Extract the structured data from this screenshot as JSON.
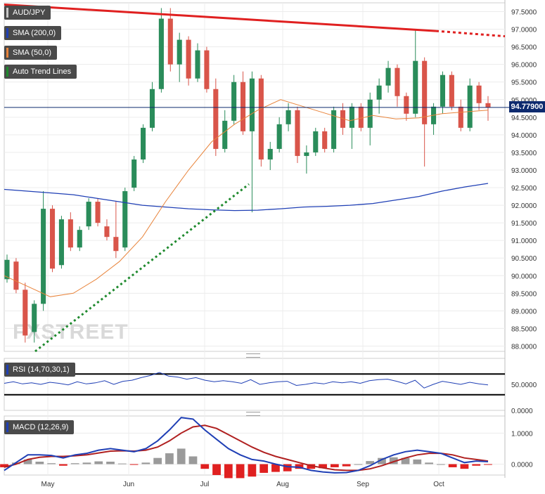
{
  "chart_data": [
    {
      "type": "candlestick",
      "panel": "price",
      "symbol": "AUD/JPY",
      "ylim": [
        87.85,
        97.75
      ],
      "y_ticks": [
        "97.5000",
        "97.0000",
        "96.5000",
        "96.0000",
        "95.5000",
        "95.0000",
        "94.5000",
        "94.0000",
        "93.5000",
        "93.0000",
        "92.5000",
        "92.0000",
        "91.5000",
        "91.0000",
        "90.5000",
        "90.0000",
        "89.5000",
        "89.0000",
        "88.5000",
        "88.0000"
      ],
      "x_labels": [
        "May",
        "Jun",
        "Jul",
        "Aug",
        "Sep",
        "Oct"
      ],
      "last_price": "94.77900",
      "legend": [
        "AUD/JPY",
        "SMA (200,0)",
        "SMA (50,0)",
        "Auto Trend Lines"
      ],
      "sma200": [
        92.45,
        92.4,
        92.35,
        92.3,
        92.2,
        92.1,
        92.0,
        91.95,
        91.9,
        91.87,
        91.85,
        91.86,
        91.9,
        91.95,
        91.97,
        92.0,
        92.05,
        92.15,
        92.25,
        92.4,
        92.52,
        92.62
      ],
      "sma50": [
        90.0,
        89.7,
        89.4,
        89.5,
        89.9,
        90.4,
        91.1,
        92.1,
        93.0,
        93.8,
        94.3,
        94.7,
        95.0,
        94.8,
        94.6,
        94.4,
        94.55,
        94.45,
        94.48,
        94.6,
        94.65,
        94.7
      ],
      "resistance_line": {
        "start": 97.7,
        "end": 96.95,
        "extension_end": 96.8
      },
      "support_line": {
        "start": 87.85,
        "end": 92.6
      },
      "candles": [
        {
          "o": 89.9,
          "h": 90.6,
          "l": 89.8,
          "c": 90.45
        },
        {
          "o": 90.4,
          "h": 90.5,
          "l": 89.5,
          "c": 89.6
        },
        {
          "o": 89.6,
          "h": 89.8,
          "l": 88.1,
          "c": 88.3
        },
        {
          "o": 88.4,
          "h": 89.3,
          "l": 88.1,
          "c": 89.2
        },
        {
          "o": 89.2,
          "h": 92.4,
          "l": 89.0,
          "c": 91.9
        },
        {
          "o": 91.9,
          "h": 92.0,
          "l": 90.1,
          "c": 90.2
        },
        {
          "o": 90.3,
          "h": 91.7,
          "l": 90.2,
          "c": 91.6
        },
        {
          "o": 91.6,
          "h": 91.8,
          "l": 90.7,
          "c": 90.8
        },
        {
          "o": 90.8,
          "h": 91.4,
          "l": 90.7,
          "c": 91.3
        },
        {
          "o": 91.4,
          "h": 92.2,
          "l": 91.3,
          "c": 92.1
        },
        {
          "o": 92.1,
          "h": 92.2,
          "l": 91.4,
          "c": 91.5
        },
        {
          "o": 91.4,
          "h": 91.6,
          "l": 91.0,
          "c": 91.1
        },
        {
          "o": 91.1,
          "h": 92.1,
          "l": 90.5,
          "c": 90.7
        },
        {
          "o": 90.8,
          "h": 92.5,
          "l": 90.7,
          "c": 92.4
        },
        {
          "o": 92.5,
          "h": 93.4,
          "l": 92.4,
          "c": 93.3
        },
        {
          "o": 93.3,
          "h": 94.3,
          "l": 93.2,
          "c": 94.2
        },
        {
          "o": 94.2,
          "h": 95.5,
          "l": 94.1,
          "c": 95.3
        },
        {
          "o": 95.3,
          "h": 97.6,
          "l": 95.2,
          "c": 97.3
        },
        {
          "o": 97.3,
          "h": 97.6,
          "l": 95.8,
          "c": 96.0
        },
        {
          "o": 96.0,
          "h": 96.9,
          "l": 95.5,
          "c": 96.7
        },
        {
          "o": 96.7,
          "h": 96.8,
          "l": 95.4,
          "c": 95.6
        },
        {
          "o": 95.6,
          "h": 96.6,
          "l": 95.5,
          "c": 96.4
        },
        {
          "o": 96.4,
          "h": 96.5,
          "l": 95.2,
          "c": 95.3
        },
        {
          "o": 95.3,
          "h": 95.6,
          "l": 93.4,
          "c": 93.6
        },
        {
          "o": 93.6,
          "h": 94.7,
          "l": 93.5,
          "c": 94.4
        },
        {
          "o": 94.4,
          "h": 95.7,
          "l": 94.3,
          "c": 95.5
        },
        {
          "o": 95.5,
          "h": 95.8,
          "l": 94.0,
          "c": 94.1
        },
        {
          "o": 94.1,
          "h": 95.8,
          "l": 91.8,
          "c": 95.6
        },
        {
          "o": 95.6,
          "h": 95.7,
          "l": 93.1,
          "c": 93.3
        },
        {
          "o": 93.3,
          "h": 93.8,
          "l": 93.0,
          "c": 93.6
        },
        {
          "o": 93.6,
          "h": 94.5,
          "l": 93.5,
          "c": 94.3
        },
        {
          "o": 94.3,
          "h": 94.9,
          "l": 94.1,
          "c": 94.7
        },
        {
          "o": 94.7,
          "h": 94.8,
          "l": 93.2,
          "c": 93.4
        },
        {
          "o": 93.4,
          "h": 93.7,
          "l": 92.9,
          "c": 93.5
        },
        {
          "o": 93.5,
          "h": 94.2,
          "l": 93.4,
          "c": 94.1
        },
        {
          "o": 94.1,
          "h": 94.2,
          "l": 93.5,
          "c": 93.6
        },
        {
          "o": 93.6,
          "h": 94.8,
          "l": 93.5,
          "c": 94.7
        },
        {
          "o": 94.7,
          "h": 94.9,
          "l": 94.0,
          "c": 94.2
        },
        {
          "o": 94.2,
          "h": 94.9,
          "l": 93.6,
          "c": 94.8
        },
        {
          "o": 94.8,
          "h": 94.9,
          "l": 94.1,
          "c": 94.2
        },
        {
          "o": 94.2,
          "h": 95.2,
          "l": 93.7,
          "c": 95.0
        },
        {
          "o": 95.0,
          "h": 95.6,
          "l": 94.6,
          "c": 95.4
        },
        {
          "o": 95.4,
          "h": 96.1,
          "l": 95.2,
          "c": 95.9
        },
        {
          "o": 95.9,
          "h": 96.0,
          "l": 94.8,
          "c": 95.1
        },
        {
          "o": 95.1,
          "h": 95.2,
          "l": 94.4,
          "c": 94.6
        },
        {
          "o": 94.6,
          "h": 97.0,
          "l": 94.5,
          "c": 96.1
        },
        {
          "o": 96.1,
          "h": 96.2,
          "l": 93.1,
          "c": 94.3
        },
        {
          "o": 94.3,
          "h": 94.9,
          "l": 94.0,
          "c": 94.8
        },
        {
          "o": 94.8,
          "h": 95.8,
          "l": 94.6,
          "c": 95.7
        },
        {
          "o": 95.7,
          "h": 95.8,
          "l": 94.7,
          "c": 94.8
        },
        {
          "o": 94.8,
          "h": 95.0,
          "l": 94.1,
          "c": 94.2
        },
        {
          "o": 94.2,
          "h": 95.6,
          "l": 94.1,
          "c": 95.4
        },
        {
          "o": 95.4,
          "h": 95.5,
          "l": 94.7,
          "c": 94.9
        },
        {
          "o": 94.9,
          "h": 95.1,
          "l": 94.4,
          "c": 94.78
        }
      ]
    },
    {
      "type": "line",
      "panel": "rsi",
      "legend": "RSI (14,70,30,1)",
      "ylim": [
        0,
        100
      ],
      "y_ticks": [
        "50.0000",
        "0.0000"
      ],
      "levels": [
        70,
        30
      ],
      "values": [
        52,
        55,
        51,
        53,
        50,
        54,
        52,
        49,
        55,
        51,
        53,
        57,
        50,
        56,
        58,
        63,
        67,
        73,
        66,
        64,
        60,
        63,
        58,
        55,
        57,
        55,
        52,
        59,
        50,
        53,
        55,
        56,
        48,
        50,
        53,
        51,
        55,
        53,
        55,
        52,
        57,
        59,
        60,
        56,
        51,
        58,
        43,
        50,
        56,
        53,
        50,
        54,
        51,
        49
      ]
    },
    {
      "type": "line",
      "panel": "macd",
      "legend": "MACD (12,26,9)",
      "y_ticks": [
        "1.0000",
        "0.0000"
      ],
      "ylim": [
        -0.35,
        1.55
      ],
      "macd": [
        -0.2,
        0.05,
        0.3,
        0.3,
        0.28,
        0.2,
        0.3,
        0.35,
        0.45,
        0.5,
        0.45,
        0.4,
        0.5,
        0.75,
        1.1,
        1.5,
        1.45,
        1.1,
        0.8,
        0.5,
        0.3,
        0.15,
        0.1,
        0.0,
        -0.08,
        -0.1,
        -0.2,
        -0.25,
        -0.28,
        -0.27,
        -0.2,
        -0.05,
        0.15,
        0.3,
        0.4,
        0.45,
        0.4,
        0.35,
        0.2,
        0.05,
        0.1,
        0.08
      ],
      "signal": [
        -0.1,
        0.0,
        0.15,
        0.22,
        0.25,
        0.25,
        0.27,
        0.3,
        0.36,
        0.42,
        0.43,
        0.42,
        0.45,
        0.55,
        0.75,
        1.0,
        1.2,
        1.25,
        1.15,
        0.95,
        0.75,
        0.55,
        0.38,
        0.25,
        0.15,
        0.05,
        -0.05,
        -0.12,
        -0.18,
        -0.2,
        -0.2,
        -0.15,
        -0.05,
        0.08,
        0.2,
        0.3,
        0.35,
        0.35,
        0.3,
        0.2,
        0.15,
        0.1
      ]
    }
  ]
}
